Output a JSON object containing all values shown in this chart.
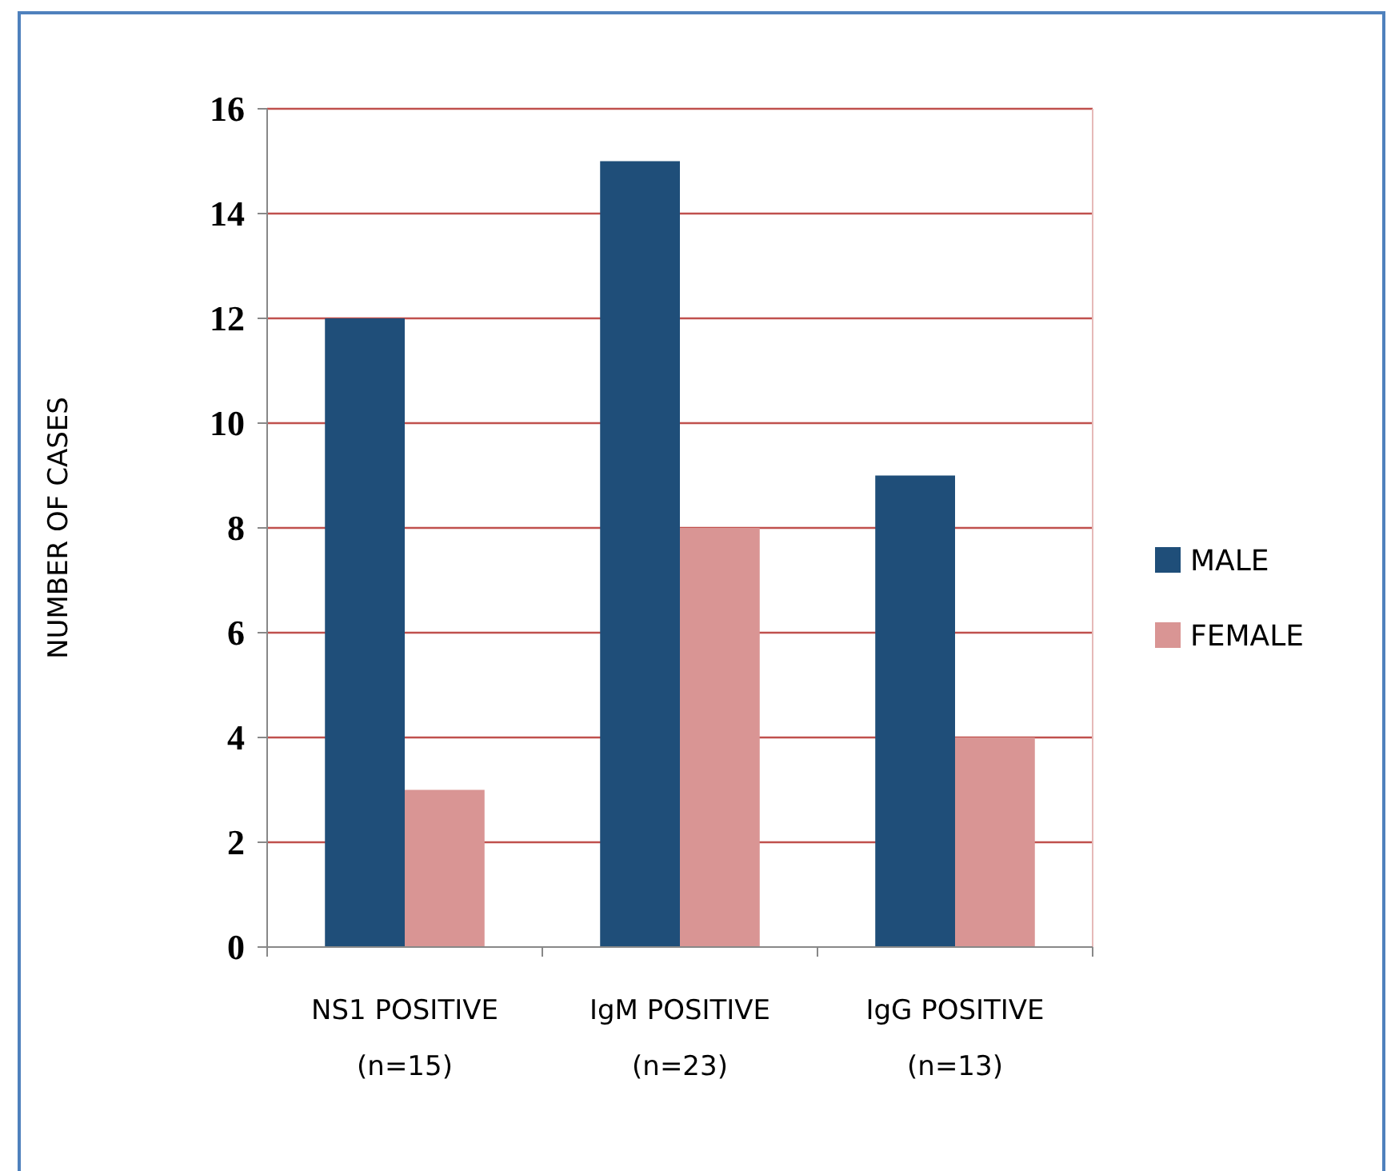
{
  "chart_data": {
    "type": "bar",
    "ylabel": "NUMBER OF CASES",
    "categories": [
      "NS1 POSITIVE\n(n=15)",
      "IgM POSITIVE\n(n=23)",
      "IgG POSITIVE\n(n=13)"
    ],
    "series": [
      {
        "name": "MALE",
        "color": "#1f4e79",
        "values": [
          12,
          15,
          9
        ]
      },
      {
        "name": "FEMALE",
        "color": "#d99594",
        "values": [
          3,
          8,
          4
        ]
      }
    ],
    "ylim": [
      0,
      16
    ],
    "yticks": [
      0,
      2,
      4,
      6,
      8,
      10,
      12,
      14,
      16
    ],
    "grid": "y",
    "legend": "right"
  }
}
